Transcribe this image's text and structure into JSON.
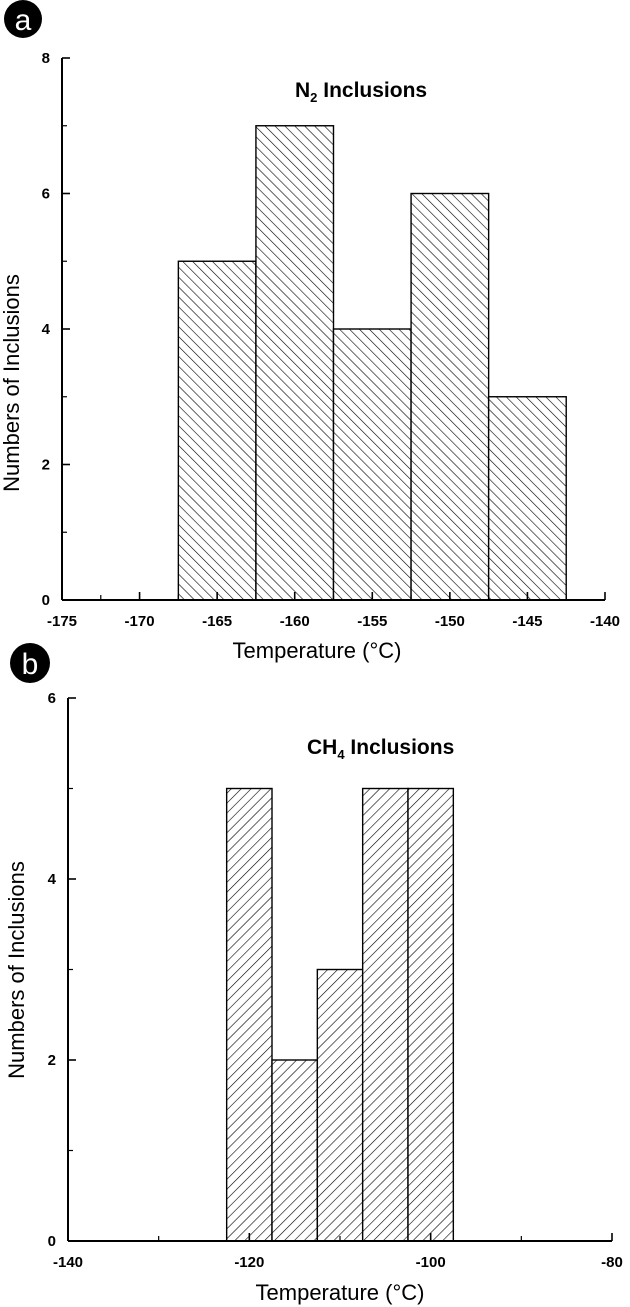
{
  "chart_data": [
    {
      "type": "bar",
      "panel_label": "a",
      "title_prefix": "N",
      "title_subscript": "2",
      "title_suffix": " Inclusions",
      "xlabel": "Temperature (°C)",
      "ylabel": "Numbers of Inclusions",
      "xlim": [
        -175,
        -140
      ],
      "ylim": [
        0,
        8
      ],
      "x_ticks": [
        -175,
        -170,
        -165,
        -160,
        -155,
        -150,
        -145,
        -140
      ],
      "x_minor_ticks": [
        -172.5,
        -167.5,
        -162.5,
        -157.5,
        -152.5,
        -147.5,
        -142.5
      ],
      "y_ticks": [
        0,
        2,
        4,
        6,
        8
      ],
      "y_minor_ticks": [
        1,
        3,
        5,
        7
      ],
      "bins": [
        {
          "x0": -167.5,
          "x1": -162.5,
          "count": 5
        },
        {
          "x0": -162.5,
          "x1": -157.5,
          "count": 7
        },
        {
          "x0": -157.5,
          "x1": -152.5,
          "count": 4
        },
        {
          "x0": -152.5,
          "x1": -147.5,
          "count": 6
        },
        {
          "x0": -147.5,
          "x1": -142.5,
          "count": 3
        }
      ],
      "hatch": "backslash",
      "grid": false
    },
    {
      "type": "bar",
      "panel_label": "b",
      "title_prefix": "CH",
      "title_subscript": "4",
      "title_suffix": " Inclusions",
      "xlabel": "Temperature (°C)",
      "ylabel": "Numbers of Inclusions",
      "xlim": [
        -140,
        -80
      ],
      "ylim": [
        0,
        6
      ],
      "x_ticks": [
        -140,
        -120,
        -100,
        -80
      ],
      "x_minor_ticks": [
        -130,
        -110,
        -90
      ],
      "y_ticks": [
        0,
        2,
        4,
        6
      ],
      "y_minor_ticks": [
        1,
        3,
        5
      ],
      "bins": [
        {
          "x0": -122.5,
          "x1": -117.5,
          "count": 5
        },
        {
          "x0": -117.5,
          "x1": -112.5,
          "count": 2
        },
        {
          "x0": -112.5,
          "x1": -107.5,
          "count": 3
        },
        {
          "x0": -107.5,
          "x1": -102.5,
          "count": 5
        },
        {
          "x0": -102.5,
          "x1": -97.5,
          "count": 5
        }
      ],
      "hatch": "slash",
      "grid": false
    }
  ]
}
